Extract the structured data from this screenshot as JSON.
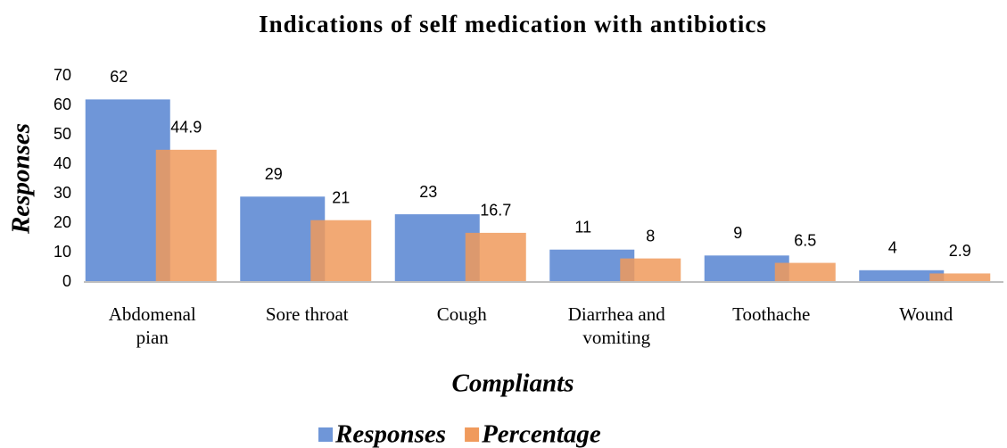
{
  "chart_data": {
    "type": "bar",
    "title": "Indications of self medication with antibiotics",
    "x_label": "Compliants",
    "y_label": "Responses",
    "categories": [
      "Abdomenal pian",
      "Sore throat",
      "Cough",
      "Diarrhea and vomiting",
      "Toothache",
      "Wound"
    ],
    "series": [
      {
        "name": "Responses",
        "color": "#6f96d8",
        "values": [
          62,
          29,
          23,
          11,
          9,
          4
        ]
      },
      {
        "name": "Percentage",
        "color": "#f09a5c",
        "values": [
          44.9,
          21,
          16.7,
          8,
          6.5,
          2.9
        ]
      }
    ],
    "ylim": [
      0,
      70
    ],
    "yticks": [
      0,
      10,
      20,
      30,
      40,
      50,
      60,
      70
    ],
    "grid": false,
    "legend": "bottom"
  }
}
